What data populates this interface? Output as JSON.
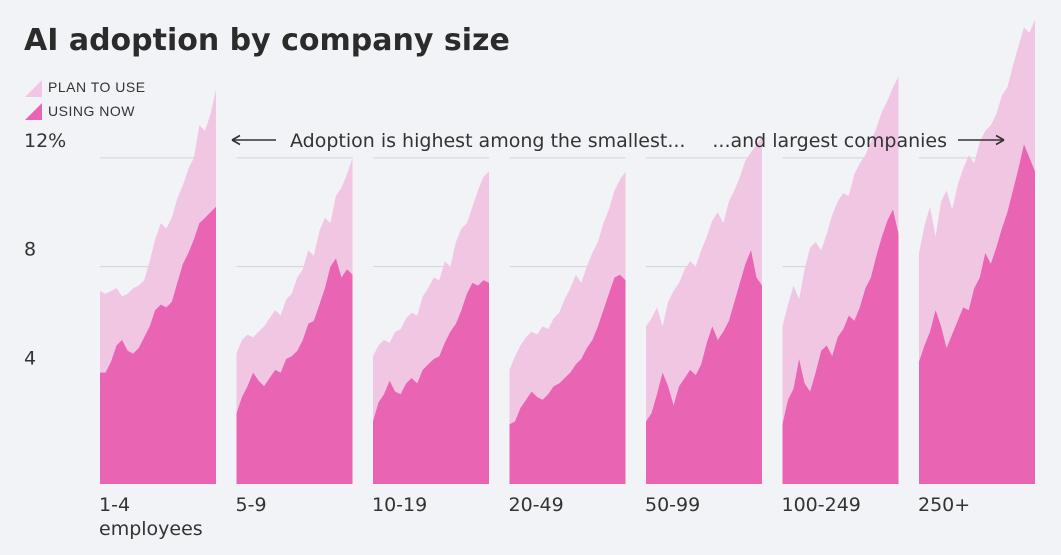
{
  "chart_data": {
    "type": "area",
    "title": "AI adoption by company size",
    "ylabel": "",
    "ylim": [
      0,
      17
    ],
    "yticks": [
      {
        "value": 4,
        "label": "4"
      },
      {
        "value": 8,
        "label": "8"
      },
      {
        "value": 12,
        "label": "12%"
      }
    ],
    "legend": {
      "placement": "top-left",
      "entries": [
        "PLAN TO USE",
        "USING NOW"
      ]
    },
    "colors": {
      "plan": "#f1c6e3",
      "using": "#e964b3",
      "grid": "#cfd3da",
      "background": "#f1f3f6"
    },
    "annotations": {
      "left": "Adoption is highest among the smallest...",
      "right": "...and largest companies"
    },
    "panels": [
      {
        "label": "1-4",
        "sublabel": "employees",
        "series": [
          {
            "name": "PLAN TO USE",
            "values": [
              7.1,
              7.0,
              7.1,
              7.2,
              6.9,
              7.0,
              7.2,
              7.3,
              7.5,
              8.2,
              9.0,
              9.6,
              9.4,
              9.8,
              10.5,
              11.0,
              11.6,
              12.0,
              13.2,
              13.0,
              13.6,
              14.5
            ]
          },
          {
            "name": "USING NOW",
            "values": [
              4.1,
              4.1,
              4.5,
              5.1,
              5.3,
              4.9,
              4.8,
              5.0,
              5.4,
              5.8,
              6.4,
              6.6,
              6.5,
              6.7,
              7.4,
              8.1,
              8.5,
              9.0,
              9.6,
              9.8,
              10.0,
              10.2
            ]
          }
        ]
      },
      {
        "label": "5-9",
        "sublabel": "",
        "series": [
          {
            "name": "PLAN TO USE",
            "values": [
              4.8,
              5.3,
              5.5,
              5.4,
              5.6,
              5.8,
              6.1,
              6.4,
              6.2,
              6.8,
              7.0,
              7.6,
              7.9,
              8.6,
              8.4,
              9.3,
              9.8,
              9.6,
              10.6,
              10.9,
              11.4,
              12.0
            ]
          },
          {
            "name": "USING NOW",
            "values": [
              2.6,
              3.2,
              3.6,
              4.1,
              3.8,
              3.6,
              3.9,
              4.2,
              4.1,
              4.6,
              4.7,
              4.9,
              5.3,
              5.9,
              6.0,
              6.6,
              7.2,
              8.0,
              8.3,
              7.6,
              7.9,
              7.7
            ]
          }
        ]
      },
      {
        "label": "10-19",
        "sublabel": "",
        "series": [
          {
            "name": "PLAN TO USE",
            "values": [
              4.7,
              5.1,
              5.3,
              5.2,
              5.6,
              5.7,
              6.1,
              6.3,
              6.2,
              6.9,
              7.2,
              7.6,
              7.5,
              8.2,
              8.0,
              8.9,
              9.4,
              9.6,
              10.2,
              10.8,
              11.3,
              11.5
            ]
          },
          {
            "name": "USING NOW",
            "values": [
              2.3,
              3.0,
              3.3,
              3.8,
              3.4,
              3.3,
              3.7,
              3.9,
              3.7,
              4.2,
              4.4,
              4.6,
              4.7,
              5.2,
              5.6,
              5.9,
              6.4,
              7.0,
              7.4,
              7.3,
              7.5,
              7.4
            ]
          }
        ]
      },
      {
        "label": "20-49",
        "sublabel": "",
        "series": [
          {
            "name": "PLAN TO USE",
            "values": [
              4.2,
              4.7,
              5.1,
              5.4,
              5.6,
              5.5,
              5.8,
              5.7,
              6.1,
              6.3,
              6.8,
              7.2,
              7.7,
              7.4,
              8.0,
              8.5,
              8.9,
              9.6,
              10.1,
              10.8,
              11.2,
              11.5
            ]
          },
          {
            "name": "USING NOW",
            "values": [
              2.2,
              2.3,
              2.8,
              3.1,
              3.4,
              3.2,
              3.1,
              3.3,
              3.6,
              3.7,
              3.9,
              4.1,
              4.4,
              4.6,
              5.0,
              5.3,
              5.8,
              6.4,
              7.0,
              7.6,
              7.7,
              7.5
            ]
          }
        ]
      },
      {
        "label": "50-99",
        "sublabel": "",
        "series": [
          {
            "name": "PLAN TO USE",
            "values": [
              5.8,
              6.1,
              6.5,
              5.8,
              6.7,
              7.1,
              7.4,
              7.9,
              8.2,
              8.0,
              8.6,
              9.1,
              9.7,
              10.0,
              9.6,
              10.4,
              10.8,
              11.3,
              11.9,
              12.2,
              12.5,
              12.8
            ]
          },
          {
            "name": "USING NOW",
            "values": [
              2.3,
              2.6,
              3.3,
              4.1,
              3.6,
              2.9,
              3.6,
              3.9,
              4.2,
              4.0,
              4.4,
              5.2,
              5.8,
              5.3,
              5.6,
              6.0,
              6.7,
              7.4,
              8.1,
              8.6,
              7.6,
              7.3
            ]
          }
        ]
      },
      {
        "label": "100-249",
        "sublabel": "",
        "series": [
          {
            "name": "PLAN TO USE",
            "values": [
              5.8,
              6.6,
              7.3,
              6.8,
              7.9,
              8.7,
              8.9,
              8.6,
              9.2,
              9.9,
              10.4,
              10.7,
              10.6,
              11.4,
              11.8,
              12.1,
              12.6,
              13.1,
              13.7,
              14.1,
              14.6,
              15.0
            ]
          },
          {
            "name": "USING NOW",
            "values": [
              2.2,
              3.1,
              3.5,
              4.6,
              3.7,
              3.4,
              4.1,
              4.9,
              5.1,
              4.7,
              5.4,
              5.7,
              6.2,
              6.0,
              6.5,
              7.2,
              7.6,
              8.4,
              9.1,
              9.7,
              10.1,
              9.2
            ]
          }
        ]
      },
      {
        "label": "250+",
        "sublabel": "",
        "series": [
          {
            "name": "PLAN TO USE",
            "values": [
              8.5,
              9.5,
              10.2,
              9.1,
              10.4,
              10.8,
              10.1,
              11.0,
              11.6,
              12.1,
              11.8,
              12.6,
              13.0,
              13.2,
              13.6,
              14.3,
              14.6,
              15.4,
              16.1,
              16.8,
              16.6,
              17.1
            ]
          },
          {
            "name": "USING NOW",
            "values": [
              4.5,
              5.1,
              5.6,
              6.4,
              5.8,
              5.0,
              5.5,
              6.0,
              6.5,
              6.4,
              7.2,
              7.6,
              8.5,
              8.1,
              8.7,
              9.4,
              10.0,
              10.8,
              11.6,
              12.5,
              12.0,
              11.5
            ]
          }
        ]
      }
    ]
  }
}
